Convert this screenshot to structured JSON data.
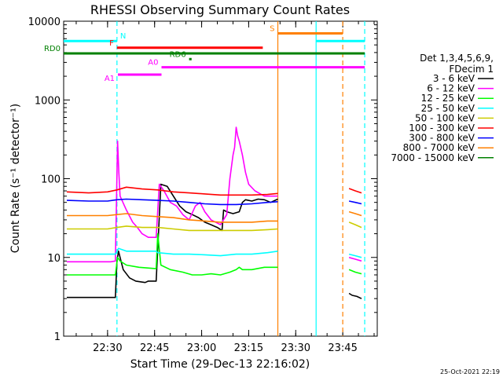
{
  "chart_data": {
    "type": "line",
    "title": "RHESSI Observing Summary Count Rates",
    "xlabel": "Start Time (29-Dec-13 22:16:02)",
    "ylabel": "Count Rate (s⁻¹ detector⁻¹)",
    "x_unit": "minutes after 22:16:02",
    "xlim": [
      0,
      100
    ],
    "ylim": [
      1,
      10000
    ],
    "yscale": "log",
    "x_ticks": [
      {
        "label": "22:30",
        "value": 14
      },
      {
        "label": "22:45",
        "value": 29
      },
      {
        "label": "23:00",
        "value": 44
      },
      {
        "label": "23:15",
        "value": 59
      },
      {
        "label": "23:30",
        "value": 74
      },
      {
        "label": "23:45",
        "value": 89
      }
    ],
    "y_ticks": [
      {
        "label": "1",
        "value": 1
      },
      {
        "label": "10",
        "value": 10
      },
      {
        "label": "100",
        "value": 100
      },
      {
        "label": "1000",
        "value": 1000
      },
      {
        "label": "10000",
        "value": 10000
      }
    ],
    "legend_header": [
      "Det 1,3,4,5,6,9,",
      "FDecim 1"
    ],
    "legend_position": "right",
    "series": [
      {
        "name": "3 - 6 keV",
        "color": "#000000",
        "points": [
          [
            1,
            3.1
          ],
          [
            8,
            3.1
          ],
          [
            16.5,
            3.1
          ],
          [
            17,
            9
          ],
          [
            17.5,
            12
          ],
          [
            18,
            10
          ],
          [
            19,
            7
          ],
          [
            21,
            5.5
          ],
          [
            23,
            5
          ],
          [
            26,
            4.8
          ],
          [
            27,
            5
          ],
          [
            29.5,
            5
          ],
          [
            31,
            85
          ],
          [
            33,
            80
          ],
          [
            35,
            60
          ],
          [
            37,
            45
          ],
          [
            39,
            38
          ],
          [
            41,
            35
          ],
          [
            43,
            32
          ],
          [
            45,
            28
          ],
          [
            47,
            26
          ],
          [
            49,
            24
          ],
          [
            50.5,
            22
          ],
          [
            51,
            40
          ],
          [
            52,
            38
          ],
          [
            54,
            36
          ],
          [
            56,
            38
          ],
          [
            57,
            50
          ],
          [
            58,
            54
          ],
          [
            60,
            52
          ],
          [
            62,
            55
          ],
          [
            64,
            54
          ],
          [
            66,
            50
          ],
          [
            68.3,
            55
          ],
          [
            69,
            null
          ],
          [
            91,
            3.5
          ],
          [
            92,
            3.3
          ],
          [
            93.5,
            3.2
          ],
          [
            95,
            3
          ]
        ]
      },
      {
        "name": "6 - 12 keV",
        "color": "#ff00ff",
        "points": [
          [
            1,
            8.8
          ],
          [
            8,
            8.8
          ],
          [
            15,
            8.8
          ],
          [
            16.5,
            9
          ],
          [
            17.2,
            300
          ],
          [
            17.6,
            120
          ],
          [
            18,
            60
          ],
          [
            20,
            40
          ],
          [
            22,
            28
          ],
          [
            23.5,
            24
          ],
          [
            25,
            20
          ],
          [
            27,
            18
          ],
          [
            29.5,
            18
          ],
          [
            30.5,
            85
          ],
          [
            32,
            70
          ],
          [
            34,
            50
          ],
          [
            36,
            45
          ],
          [
            38,
            35
          ],
          [
            40,
            30
          ],
          [
            42,
            45
          ],
          [
            43.5,
            50
          ],
          [
            45,
            38
          ],
          [
            47,
            30
          ],
          [
            50,
            26
          ],
          [
            52,
            35
          ],
          [
            53,
            100
          ],
          [
            54,
            200
          ],
          [
            54.5,
            250
          ],
          [
            55,
            450
          ],
          [
            55.5,
            350
          ],
          [
            56,
            300
          ],
          [
            57,
            200
          ],
          [
            58,
            120
          ],
          [
            59,
            85
          ],
          [
            61,
            70
          ],
          [
            64,
            60
          ],
          [
            68.3,
            60
          ],
          [
            69,
            null
          ],
          [
            91,
            10
          ],
          [
            93,
            9.5
          ],
          [
            95,
            9
          ]
        ]
      },
      {
        "name": "12 - 25 keV",
        "color": "#00ff00",
        "points": [
          [
            1,
            6
          ],
          [
            8,
            6
          ],
          [
            16.5,
            6
          ],
          [
            17.2,
            10
          ],
          [
            18,
            9
          ],
          [
            20,
            8
          ],
          [
            24,
            7.5
          ],
          [
            29.5,
            7.2
          ],
          [
            30,
            20
          ],
          [
            31,
            8
          ],
          [
            34,
            7
          ],
          [
            38,
            6.5
          ],
          [
            41,
            6
          ],
          [
            44,
            6
          ],
          [
            47,
            6.2
          ],
          [
            50,
            6
          ],
          [
            53,
            6.5
          ],
          [
            55,
            7
          ],
          [
            56,
            7.5
          ],
          [
            57,
            7
          ],
          [
            60,
            7
          ],
          [
            64,
            7.5
          ],
          [
            68.3,
            7.5
          ],
          [
            69,
            null
          ],
          [
            91,
            7
          ],
          [
            93,
            6.5
          ],
          [
            95,
            6.2
          ]
        ]
      },
      {
        "name": "25 - 50 keV",
        "color": "#00ffff",
        "points": [
          [
            1,
            11
          ],
          [
            8,
            11
          ],
          [
            16.5,
            11
          ],
          [
            17.5,
            13
          ],
          [
            20,
            12
          ],
          [
            25,
            12
          ],
          [
            29.5,
            12
          ],
          [
            30,
            11.5
          ],
          [
            35,
            11
          ],
          [
            40,
            11
          ],
          [
            45,
            10.8
          ],
          [
            50,
            10.5
          ],
          [
            55,
            11
          ],
          [
            60,
            11
          ],
          [
            65,
            11.5
          ],
          [
            68.3,
            12
          ],
          [
            69,
            null
          ],
          [
            91,
            11
          ],
          [
            93,
            10.5
          ],
          [
            95,
            10
          ]
        ]
      },
      {
        "name": "50 - 100 keV",
        "color": "#cccc00",
        "points": [
          [
            1,
            23
          ],
          [
            8,
            23
          ],
          [
            14,
            23
          ],
          [
            17,
            24
          ],
          [
            20,
            25
          ],
          [
            25,
            24
          ],
          [
            30,
            24
          ],
          [
            35,
            23
          ],
          [
            40,
            22
          ],
          [
            45,
            22
          ],
          [
            50,
            22
          ],
          [
            55,
            22
          ],
          [
            60,
            22
          ],
          [
            65,
            22.5
          ],
          [
            68.3,
            23
          ],
          [
            69,
            null
          ],
          [
            91,
            28
          ],
          [
            93,
            26
          ],
          [
            95,
            24
          ]
        ]
      },
      {
        "name": "100 - 300 keV",
        "color": "#ff0000",
        "points": [
          [
            1,
            68
          ],
          [
            8,
            66
          ],
          [
            14,
            68
          ],
          [
            17,
            72
          ],
          [
            20,
            78
          ],
          [
            25,
            74
          ],
          [
            30,
            72
          ],
          [
            35,
            68
          ],
          [
            40,
            66
          ],
          [
            45,
            64
          ],
          [
            50,
            62
          ],
          [
            55,
            62
          ],
          [
            60,
            62
          ],
          [
            65,
            63
          ],
          [
            68.3,
            65
          ],
          [
            69,
            null
          ],
          [
            91,
            75
          ],
          [
            93,
            70
          ],
          [
            95,
            66
          ]
        ]
      },
      {
        "name": "300 - 800 keV",
        "color": "#0000ff",
        "points": [
          [
            1,
            53
          ],
          [
            8,
            52
          ],
          [
            14,
            52
          ],
          [
            17,
            54
          ],
          [
            20,
            55
          ],
          [
            25,
            54
          ],
          [
            30,
            53
          ],
          [
            35,
            52
          ],
          [
            40,
            50
          ],
          [
            45,
            48
          ],
          [
            50,
            47
          ],
          [
            55,
            47
          ],
          [
            60,
            48
          ],
          [
            65,
            50
          ],
          [
            68.3,
            51
          ],
          [
            69,
            null
          ],
          [
            91,
            52
          ],
          [
            93,
            50
          ],
          [
            95,
            48
          ]
        ]
      },
      {
        "name": "800 - 7000 keV",
        "color": "#ff8000",
        "points": [
          [
            1,
            34
          ],
          [
            8,
            34
          ],
          [
            14,
            34
          ],
          [
            17,
            35
          ],
          [
            20,
            36
          ],
          [
            25,
            34
          ],
          [
            30,
            33
          ],
          [
            35,
            32
          ],
          [
            40,
            30
          ],
          [
            45,
            29
          ],
          [
            50,
            28
          ],
          [
            55,
            28
          ],
          [
            60,
            28
          ],
          [
            65,
            29
          ],
          [
            68.3,
            29
          ],
          [
            69,
            null
          ],
          [
            91,
            38
          ],
          [
            93,
            36
          ],
          [
            95,
            34
          ]
        ]
      },
      {
        "name": "7000 - 15000 keV",
        "color": "#008000",
        "points": []
      }
    ],
    "state_bars": [
      {
        "label": "N",
        "color": "#00ffff",
        "y": 5600,
        "segments": [
          [
            0,
            17
          ],
          [
            80.5,
            96
          ]
        ]
      },
      {
        "label": "F",
        "color": "#ff0000",
        "y": 4600,
        "segments": [
          [
            17,
            63.5
          ]
        ]
      },
      {
        "label": "S",
        "color": "#ff8000",
        "y": 7000,
        "segments": [
          [
            68.3,
            89
          ]
        ]
      },
      {
        "label": "RD0",
        "color": "#008000",
        "y": 3900,
        "segments": [
          [
            0,
            96
          ]
        ]
      },
      {
        "label": "RD6",
        "color": "#008000",
        "y": 3300,
        "segments": [
          [
            40,
            40.8
          ]
        ]
      },
      {
        "label": "A0",
        "color": "#ff00ff",
        "y": 2600,
        "segments": [
          [
            31.2,
            96
          ]
        ]
      },
      {
        "label": "A1",
        "color": "#ff00ff",
        "y": 2100,
        "segments": [
          [
            17.3,
            31.2
          ]
        ]
      }
    ],
    "vertical_markers": [
      {
        "x": 17,
        "color": "#00ffff",
        "style": "dashed"
      },
      {
        "x": 68.3,
        "color": "#ff8000",
        "style": "solid"
      },
      {
        "x": 80.5,
        "color": "#00ffff",
        "style": "solid"
      },
      {
        "x": 89,
        "color": "#ff8000",
        "style": "dashed"
      },
      {
        "x": 96,
        "color": "#00ffff",
        "style": "dashed"
      }
    ]
  },
  "footer_timestamp": "25-Oct-2021 22:19"
}
